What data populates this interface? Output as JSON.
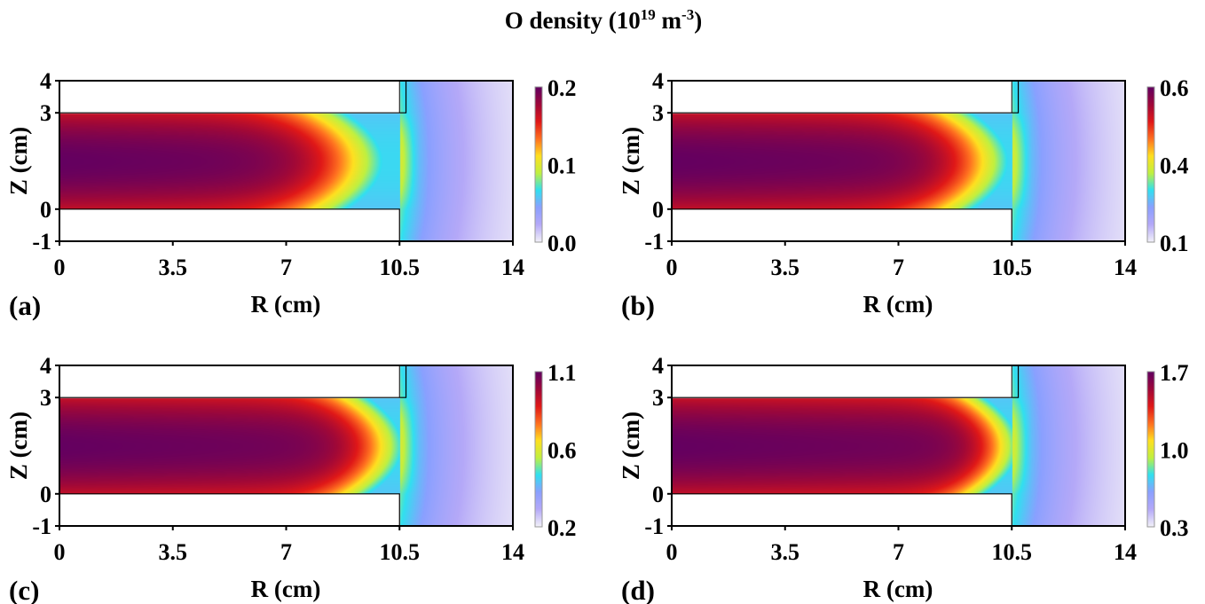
{
  "chart_data": {
    "type": "heatmap",
    "title": {
      "main": "O density (10",
      "exp1": "19",
      "unit": " m",
      "exp2": "-3",
      "close": ")"
    },
    "xlabel": "R (cm)",
    "ylabel": "Z (cm)",
    "xlim": [
      0,
      14
    ],
    "ylim": [
      -1,
      4
    ],
    "xticks": [
      "0",
      "3.5",
      "7",
      "10.5",
      "14"
    ],
    "xtick_values": [
      0,
      3.5,
      7,
      10.5,
      14
    ],
    "yticks": [
      "4",
      "3",
      "0",
      "-1"
    ],
    "ytick_values": [
      4,
      3,
      0,
      -1
    ],
    "colormap": [
      "#f0eef8",
      "#b4a8f8",
      "#8aa0ff",
      "#30e0f0",
      "#c0f040",
      "#ffe020",
      "#ff7020",
      "#e01818",
      "#a00838",
      "#640060"
    ],
    "panels": [
      {
        "label": "(a)",
        "colorbar_ticks": [
          "0.2",
          "0.1",
          "0.0"
        ],
        "vmin": 0.0,
        "vmax": 0.2,
        "front_R": 9.3
      },
      {
        "label": "(b)",
        "colorbar_ticks": [
          "0.6",
          "0.4",
          "0.1"
        ],
        "vmin": 0.1,
        "vmax": 0.6,
        "front_R": 9.8
      },
      {
        "label": "(c)",
        "colorbar_ticks": [
          "1.1",
          "0.6",
          "0.2"
        ],
        "vmin": 0.2,
        "vmax": 1.1,
        "front_R": 10.1
      },
      {
        "label": "(d)",
        "colorbar_ticks": [
          "1.7",
          "1.0",
          "0.3"
        ],
        "vmin": 0.3,
        "vmax": 1.7,
        "front_R": 10.3
      }
    ]
  }
}
